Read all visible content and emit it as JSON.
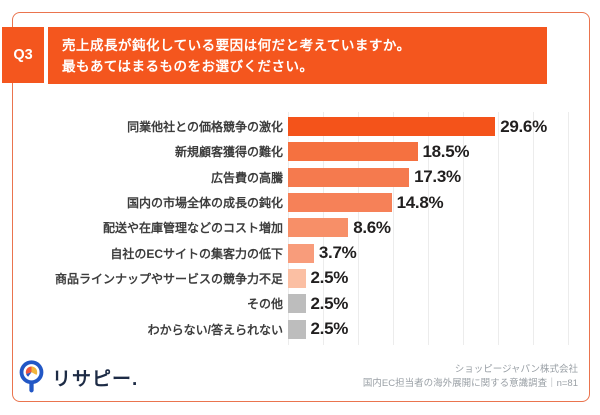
{
  "header": {
    "badge_label": "Q3",
    "accent_color": "#f4561e",
    "title_line1": "売上成長が鈍化している要因は何だと考えていますか。",
    "title_line2": "最もあてはまるものをお選びください。"
  },
  "card": {
    "border_color": "#ea744e"
  },
  "chart_data": {
    "type": "bar",
    "orientation": "horizontal",
    "unit": "%",
    "xlim": [
      0,
      40
    ],
    "gridline_interval": 5,
    "grid": true,
    "categories": [
      "同業他社との価格競争の激化",
      "新規顧客獲得の難化",
      "広告費の高騰",
      "国内の市場全体の成長の鈍化",
      "配送や在庫管理などのコスト増加",
      "自社のECサイトの集客力の低下",
      "商品ラインナップやサービスの競争力不足",
      "その他",
      "わからない/答えられない"
    ],
    "values": [
      29.6,
      18.5,
      17.3,
      14.8,
      8.6,
      3.7,
      2.5,
      2.5,
      2.5
    ],
    "value_labels": [
      "29.6%",
      "18.5%",
      "17.3%",
      "14.8%",
      "8.6%",
      "3.7%",
      "2.5%",
      "2.5%",
      "2.5%"
    ],
    "bar_colors": [
      "#f4531a",
      "#f57140",
      "#f57a4e",
      "#f68158",
      "#f78f68",
      "#f89c7b",
      "#fbbfa3",
      "#bdbdbd",
      "#bdbdbd"
    ]
  },
  "footer": {
    "logo_text": "リサピー.",
    "logo_colors": {
      "ring_blue": "#2257c5",
      "pie_red": "#ef573f",
      "pie_yellow": "#f2b63c",
      "pie_blue": "#2b53c0"
    },
    "company": "ショッピージャパン株式会社",
    "survey_note": "国内EC担当者の海外展開に関する意識調査｜n=81"
  }
}
